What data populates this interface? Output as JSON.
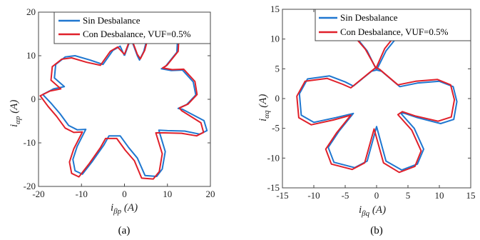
{
  "chart_data": [
    {
      "type": "line",
      "caption": "(a)",
      "xlabel": {
        "main": "i",
        "sub": "βp",
        "unit": " (A)"
      },
      "ylabel": {
        "main": "i",
        "sub": "αp",
        "unit": " (A)"
      },
      "xlim": [
        -20,
        20
      ],
      "ylim": [
        -20,
        20
      ],
      "xticks": [
        -20,
        -10,
        0,
        10,
        20
      ],
      "yticks": [
        -20,
        -10,
        0,
        10,
        20
      ],
      "legend_position": "top-right",
      "series": [
        {
          "name": "Sin Desbalance",
          "color": "#1f77d0",
          "points": [
            [
              0,
              10
            ],
            [
              1.5,
              14
            ],
            [
              3,
              10
            ],
            [
              3.5,
              9
            ],
            [
              4.5,
              11
            ],
            [
              5.5,
              14.8
            ],
            [
              8.2,
              15.9
            ],
            [
              10.8,
              16.1
            ],
            [
              12.4,
              14.5
            ],
            [
              12.2,
              10.8
            ],
            [
              9.6,
              7.6
            ],
            [
              8.6,
              7.0
            ],
            [
              10.8,
              6.6
            ],
            [
              13.5,
              6.7
            ],
            [
              16,
              4
            ],
            [
              16.6,
              1
            ],
            [
              14.5,
              -1.2
            ],
            [
              12.5,
              -2.1
            ],
            [
              13.5,
              -2.3
            ],
            [
              18.5,
              -4.9
            ],
            [
              19.2,
              -7.2
            ],
            [
              17.5,
              -8
            ],
            [
              14,
              -7.3
            ],
            [
              10,
              -7.2
            ],
            [
              8,
              -7.1
            ],
            [
              9.5,
              -12
            ],
            [
              8.8,
              -16
            ],
            [
              7.5,
              -17.7
            ],
            [
              4.8,
              -17.5
            ],
            [
              3,
              -13.5
            ],
            [
              1,
              -11.1
            ],
            [
              -1,
              -8.4
            ],
            [
              -3.6,
              -8.4
            ],
            [
              -4.8,
              -10.5
            ],
            [
              -7.5,
              -14.3
            ],
            [
              -9.8,
              -17.2
            ],
            [
              -11.5,
              -16.4
            ],
            [
              -12,
              -13.8
            ],
            [
              -11,
              -10.8
            ],
            [
              -9,
              -6.9
            ],
            [
              -11,
              -7
            ],
            [
              -13,
              -6
            ],
            [
              -15,
              -3.3
            ],
            [
              -17,
              -1
            ],
            [
              -19,
              1.1
            ],
            [
              -16.5,
              2.4
            ],
            [
              -14,
              2.9
            ],
            [
              -16.3,
              4.9
            ],
            [
              -16,
              8
            ],
            [
              -13.8,
              9.7
            ],
            [
              -11.5,
              10
            ],
            [
              -8,
              9
            ],
            [
              -5,
              8
            ],
            [
              -2.7,
              11.2
            ],
            [
              -1,
              12.2
            ],
            [
              0,
              10
            ]
          ]
        },
        {
          "name": "Con Desbalance, VUF=0.5%",
          "color": "#e0202a",
          "points": [
            [
              0,
              10.3
            ],
            [
              1.5,
              14.3
            ],
            [
              3,
              10.3
            ],
            [
              3.7,
              9.3
            ],
            [
              4.7,
              11.2
            ],
            [
              5.8,
              15.2
            ],
            [
              8.4,
              16.3
            ],
            [
              11.1,
              16.4
            ],
            [
              12.7,
              14.8
            ],
            [
              12.5,
              11.0
            ],
            [
              9.9,
              7.8
            ],
            [
              8.9,
              7.2
            ],
            [
              11.1,
              6.8
            ],
            [
              13.8,
              6.9
            ],
            [
              16.4,
              4.1
            ],
            [
              16.9,
              1.1
            ],
            [
              14.8,
              -1.1
            ],
            [
              12.8,
              -2.0
            ],
            [
              13.3,
              -2.6
            ],
            [
              17.8,
              -5.4
            ],
            [
              18.4,
              -7.6
            ],
            [
              16.8,
              -8.4
            ],
            [
              13.3,
              -7.8
            ],
            [
              9.4,
              -7.7
            ],
            [
              7.3,
              -7.7
            ],
            [
              8.8,
              -12.5
            ],
            [
              8.1,
              -16.6
            ],
            [
              6.7,
              -18.3
            ],
            [
              4.0,
              -18.1
            ],
            [
              2.3,
              -14.1
            ],
            [
              0.2,
              -11.7
            ],
            [
              -1.8,
              -9.0
            ],
            [
              -4.4,
              -9.0
            ],
            [
              -5.6,
              -11.1
            ],
            [
              -8.3,
              -14.9
            ],
            [
              -10.6,
              -17.8
            ],
            [
              -12.3,
              -17.0
            ],
            [
              -12.8,
              -14.4
            ],
            [
              -11.8,
              -11.4
            ],
            [
              -9.8,
              -7.5
            ],
            [
              -11.8,
              -7.6
            ],
            [
              -13.8,
              -6.6
            ],
            [
              -15.8,
              -3.9
            ],
            [
              -17.8,
              -1.6
            ],
            [
              -19.6,
              0.8
            ],
            [
              -17.3,
              1.9
            ],
            [
              -14.8,
              2.4
            ],
            [
              -17.1,
              4.4
            ],
            [
              -16.8,
              7.5
            ],
            [
              -14.6,
              9.2
            ],
            [
              -12.3,
              9.5
            ],
            [
              -8.8,
              8.5
            ],
            [
              -5.6,
              7.8
            ],
            [
              -3.3,
              11.0
            ],
            [
              -1.6,
              12.0
            ],
            [
              0,
              10.3
            ]
          ]
        }
      ]
    },
    {
      "type": "line",
      "caption": "(b)",
      "xlabel": {
        "main": "i",
        "sub": "βq",
        "unit": " (A)"
      },
      "ylabel": {
        "main": "i",
        "sub": "αq",
        "unit": " (A)"
      },
      "xlim": [
        -15,
        15
      ],
      "ylim": [
        -15,
        15
      ],
      "xticks": [
        -15,
        -10,
        -5,
        0,
        5,
        10,
        15
      ],
      "yticks": [
        -15,
        -10,
        -5,
        0,
        5,
        10,
        15
      ],
      "legend_position": "top-right",
      "series": [
        {
          "name": "Sin Desbalance",
          "color": "#1f77d0",
          "points": [
            [
              0,
              4.8
            ],
            [
              1.5,
              8
            ],
            [
              3.8,
              11
            ],
            [
              4.5,
              14
            ],
            [
              4,
              17
            ],
            [
              -4,
              17
            ],
            [
              -4.5,
              14
            ],
            [
              -3.8,
              11
            ],
            [
              -1.5,
              8
            ],
            [
              0,
              4.8
            ],
            [
              0.8,
              4.6
            ],
            [
              3.7,
              2.0
            ],
            [
              6.5,
              2.6
            ],
            [
              10,
              2.9
            ],
            [
              12.2,
              2.0
            ],
            [
              12.8,
              -0.5
            ],
            [
              12.3,
              -3.5
            ],
            [
              10.2,
              -4.2
            ],
            [
              6.5,
              -3.2
            ],
            [
              4.5,
              -2.5
            ],
            [
              3.8,
              -2.4
            ],
            [
              6,
              -5
            ],
            [
              7.5,
              -8.5
            ],
            [
              6.5,
              -11
            ],
            [
              4,
              -12
            ],
            [
              1.5,
              -10.5
            ],
            [
              0,
              -4.7
            ],
            [
              -1.5,
              -10.5
            ],
            [
              -3.5,
              -11.6
            ],
            [
              -6.8,
              -10.7
            ],
            [
              -7.7,
              -8.2
            ],
            [
              -6,
              -5.5
            ],
            [
              -3.7,
              -2.5
            ],
            [
              -6.5,
              -3.2
            ],
            [
              -10,
              -4
            ],
            [
              -12,
              -2.8
            ],
            [
              -12.3,
              0.8
            ],
            [
              -11,
              3.3
            ],
            [
              -7.5,
              3.8
            ],
            [
              -5,
              2.8
            ],
            [
              -3.7,
              2.1
            ],
            [
              -0.8,
              4.6
            ],
            [
              0,
              4.8
            ]
          ]
        },
        {
          "name": "Con Desbalance, VUF=0.5%",
          "color": "#e0202a",
          "points": [
            [
              0,
              5.3
            ],
            [
              1.3,
              8.4
            ],
            [
              3.5,
              11.3
            ],
            [
              4.2,
              14.2
            ],
            [
              3.8,
              17
            ],
            [
              -4.3,
              17
            ],
            [
              -4.8,
              14.1
            ],
            [
              -4.1,
              11.1
            ],
            [
              -1.8,
              8.3
            ],
            [
              -0.2,
              5.3
            ],
            [
              0.5,
              4.9
            ],
            [
              3.4,
              2.3
            ],
            [
              6.2,
              2.9
            ],
            [
              9.7,
              3.2
            ],
            [
              11.8,
              2.3
            ],
            [
              12.4,
              -0.2
            ],
            [
              11.9,
              -3.1
            ],
            [
              9.8,
              -3.8
            ],
            [
              6.1,
              -2.9
            ],
            [
              4.1,
              -2.2
            ],
            [
              3.4,
              -2.7
            ],
            [
              5.6,
              -5.3
            ],
            [
              7.1,
              -8.8
            ],
            [
              6.1,
              -11.4
            ],
            [
              3.6,
              -12.4
            ],
            [
              1.1,
              -10.8
            ],
            [
              -0.4,
              -5.1
            ],
            [
              -1.9,
              -10.8
            ],
            [
              -3.9,
              -11.9
            ],
            [
              -7.2,
              -11.0
            ],
            [
              -8.1,
              -8.5
            ],
            [
              -6.4,
              -5.8
            ],
            [
              -4.1,
              -2.8
            ],
            [
              -6.9,
              -3.6
            ],
            [
              -10.4,
              -4.4
            ],
            [
              -12.4,
              -3.2
            ],
            [
              -12.7,
              0.4
            ],
            [
              -11.4,
              2.9
            ],
            [
              -7.9,
              3.4
            ],
            [
              -5.4,
              2.4
            ],
            [
              -4.1,
              1.8
            ],
            [
              -1.2,
              4.3
            ],
            [
              0,
              5.3
            ]
          ]
        }
      ]
    }
  ]
}
